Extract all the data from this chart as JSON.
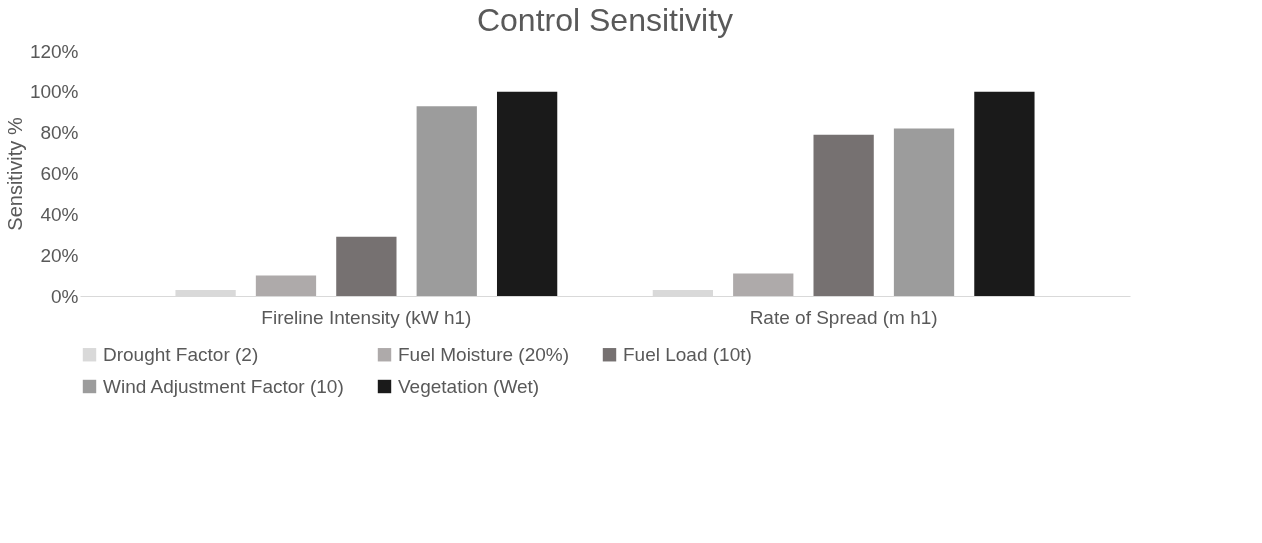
{
  "chart_data": {
    "type": "bar",
    "title": "Control Sensitivity",
    "ylabel": "Sensitivity %",
    "categories": [
      "Fireline Intensity (kW h1)",
      "Rate of Spread (m h1)"
    ],
    "series": [
      {
        "name": "Drought Factor (2)",
        "color": "#d9d9d9",
        "values": [
          3,
          3
        ]
      },
      {
        "name": "Fuel Moisture (20%)",
        "color": "#aeaaaa",
        "values": [
          10,
          11
        ]
      },
      {
        "name": "Fuel Load (10t)",
        "color": "#767171",
        "values": [
          29,
          79
        ]
      },
      {
        "name": "Wind Adjustment Factor (10)",
        "color": "#9c9c9c",
        "values": [
          93,
          82
        ]
      },
      {
        "name": "Vegetation (Wet)",
        "color": "#1a1a1a",
        "values": [
          100,
          100
        ]
      }
    ],
    "ylim": [
      0,
      120
    ],
    "yticks": [
      {
        "value": 0,
        "label": "0%"
      },
      {
        "value": 20,
        "label": "20%"
      },
      {
        "value": 40,
        "label": "40%"
      },
      {
        "value": 60,
        "label": "60%"
      },
      {
        "value": 80,
        "label": "80%"
      },
      {
        "value": 100,
        "label": "100%"
      },
      {
        "value": 120,
        "label": "120%"
      }
    ],
    "grid": false,
    "legend": "bottom"
  }
}
